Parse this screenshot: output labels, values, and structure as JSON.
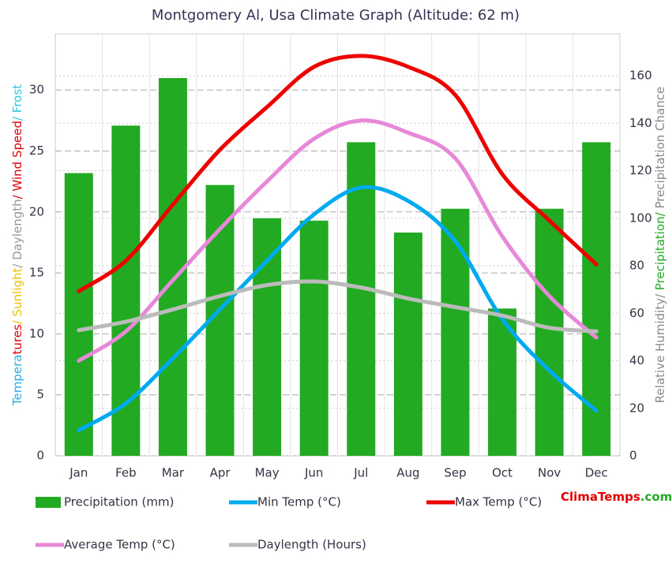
{
  "chart_data": {
    "type": "combo",
    "title": "Montgomery Al, Usa Climate Graph (Altitude: 62 m)",
    "ylabel_parts": [
      {
        "text": "Tempera",
        "color": "#29abe2"
      },
      {
        "text": "tures",
        "color": "#e00000"
      },
      {
        "text": "/ Sunlight",
        "color": "#f0c000"
      },
      {
        "text": "/ Daylength",
        "color": "#999999"
      },
      {
        "text": "/ Wind Speed",
        "color": "#e00000"
      },
      {
        "text": "/ Frost",
        "color": "#29c5e2"
      }
    ],
    "y2label_parts": [
      {
        "text": "Relative Humidity/ ",
        "color": "#888888"
      },
      {
        "text": "Precipitation/ ",
        "color": "#22aa22"
      },
      {
        "text": "Precipitation Chance",
        "color": "#888888"
      }
    ],
    "brand_parts": [
      {
        "text": "ClimaTemps",
        "color": "#e00000"
      },
      {
        "text": ".com",
        "color": "#22aa22"
      }
    ],
    "categories": [
      "Jan",
      "Feb",
      "Mar",
      "Apr",
      "May",
      "Jun",
      "Jul",
      "Aug",
      "Sep",
      "Oct",
      "Nov",
      "Dec"
    ],
    "ylim": [
      0,
      34.6
    ],
    "yticks": [
      0,
      5,
      10,
      15,
      20,
      25,
      30
    ],
    "y2lim": [
      0,
      177.6
    ],
    "y2ticks": [
      0,
      20,
      40,
      60,
      80,
      100,
      120,
      140,
      160
    ],
    "grid": true,
    "series": [
      {
        "name": "Precipitation (mm)",
        "type": "bar",
        "axis": "y2",
        "color": "#22aa22",
        "values": [
          119,
          139,
          159,
          114,
          100,
          99,
          132,
          94,
          104,
          62,
          104,
          132
        ]
      },
      {
        "name": "Min Temp (°C)",
        "type": "line",
        "color": "#00aaee",
        "values": [
          2.1,
          4.3,
          8.0,
          12.0,
          16.0,
          19.8,
          22.0,
          20.9,
          17.6,
          11.2,
          7.0,
          3.7
        ]
      },
      {
        "name": "Max Temp (°C)",
        "type": "line",
        "color": "#ee0000",
        "values": [
          13.5,
          16.0,
          20.6,
          25.1,
          28.6,
          31.9,
          32.8,
          31.9,
          29.6,
          23.1,
          19.3,
          15.7
        ]
      },
      {
        "name": "Average Temp (°C)",
        "type": "line",
        "color": "#e888d8",
        "values": [
          7.8,
          10.2,
          14.4,
          18.6,
          22.5,
          26.0,
          27.5,
          26.5,
          24.4,
          18.0,
          13.1,
          9.7
        ]
      },
      {
        "name": "Daylength (Hours)",
        "type": "line",
        "color": "#bbbbbb",
        "values": [
          10.3,
          11.0,
          12.0,
          13.1,
          14.0,
          14.3,
          13.8,
          12.9,
          12.2,
          11.5,
          10.5,
          10.2
        ]
      }
    ]
  }
}
